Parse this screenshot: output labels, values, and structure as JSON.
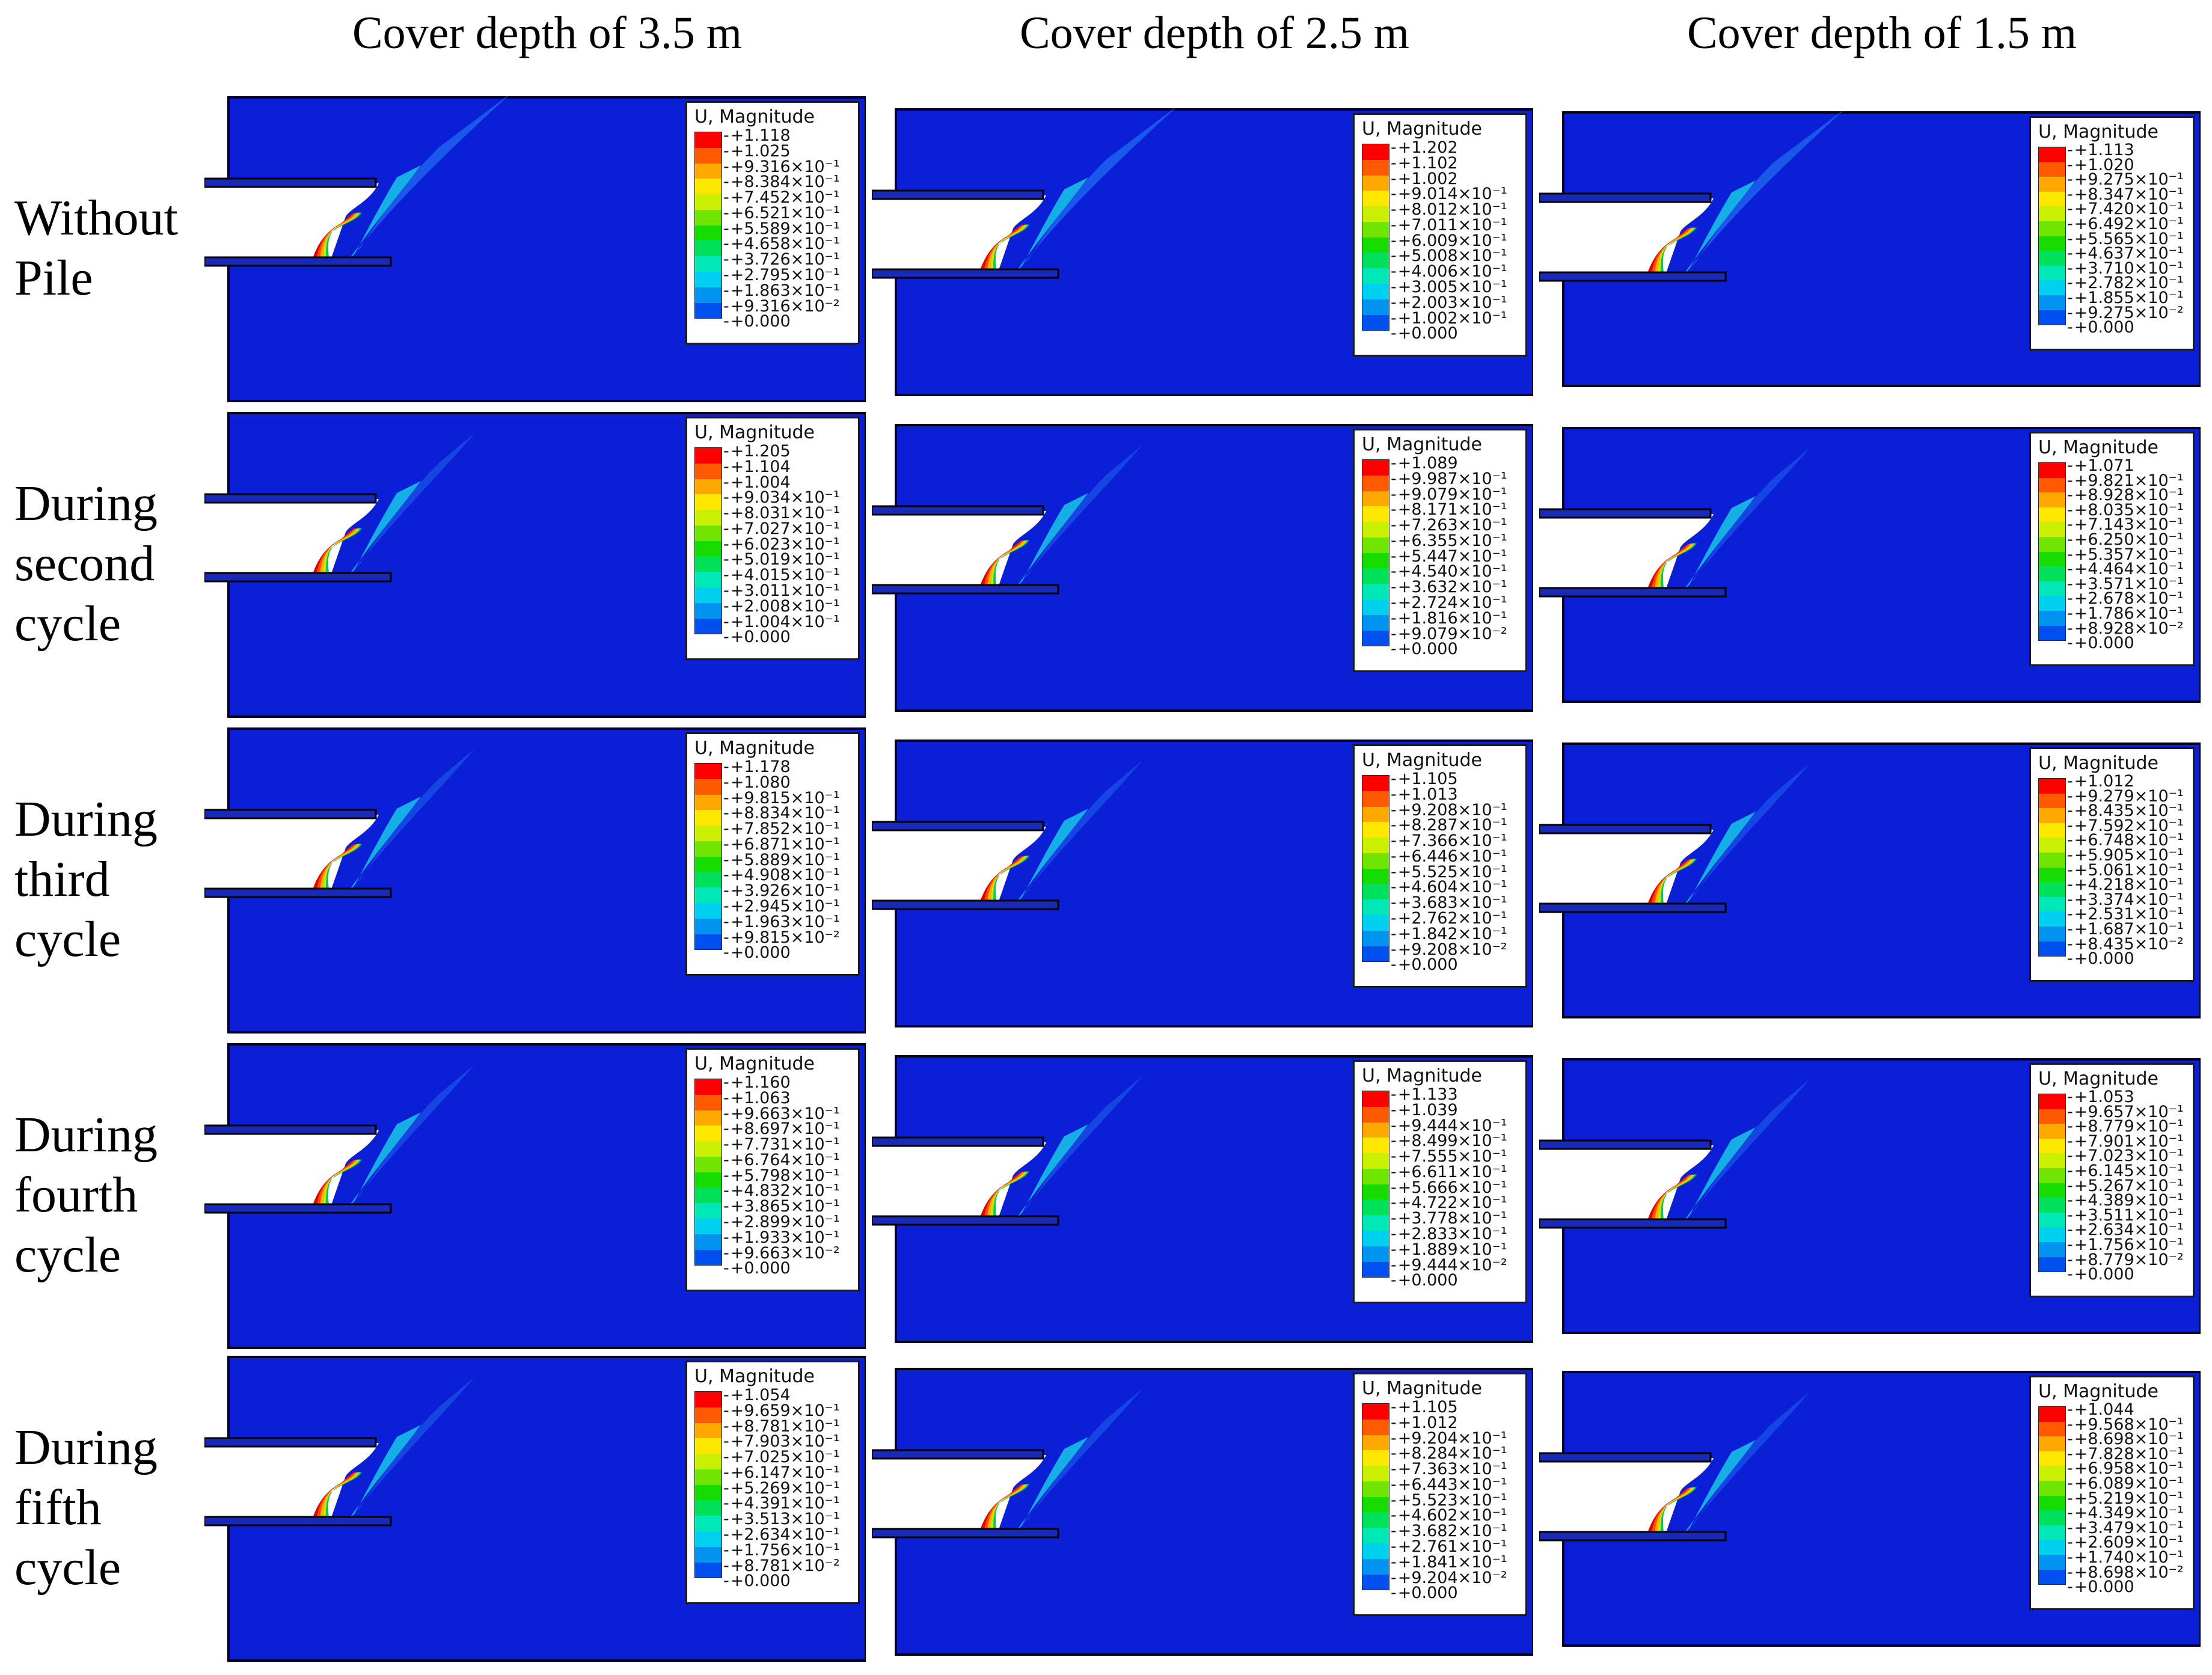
{
  "columns": [
    "Cover depth of 3.5 m",
    "Cover depth of 2.5 m",
    "Cover depth of 1.5 m"
  ],
  "rows": [
    [
      "Without",
      "Pile"
    ],
    [
      "During",
      "second",
      "cycle"
    ],
    [
      "During",
      "third",
      "cycle"
    ],
    [
      "During",
      "fourth",
      "cycle"
    ],
    [
      "During",
      "fifth",
      "cycle"
    ]
  ],
  "legend_title": "U, Magnitude",
  "legend_colors": [
    "#ff0000",
    "#ff5a00",
    "#ffa800",
    "#ffe800",
    "#c8f000",
    "#6ee600",
    "#16dc00",
    "#00e05a",
    "#00e8b8",
    "#00d0f0",
    "#0094f0",
    "#0050f0",
    "#0000ff"
  ],
  "legends": [
    [
      [
        "+1.118",
        "+1.025",
        "+9.316×10⁻¹",
        "+8.384×10⁻¹",
        "+7.452×10⁻¹",
        "+6.521×10⁻¹",
        "+5.589×10⁻¹",
        "+4.658×10⁻¹",
        "+3.726×10⁻¹",
        "+2.795×10⁻¹",
        "+1.863×10⁻¹",
        "+9.316×10⁻²",
        "+0.000"
      ],
      [
        "+1.202",
        "+1.102",
        "+1.002",
        "+9.014×10⁻¹",
        "+8.012×10⁻¹",
        "+7.011×10⁻¹",
        "+6.009×10⁻¹",
        "+5.008×10⁻¹",
        "+4.006×10⁻¹",
        "+3.005×10⁻¹",
        "+2.003×10⁻¹",
        "+1.002×10⁻¹",
        "+0.000"
      ],
      [
        "+1.113",
        "+1.020",
        "+9.275×10⁻¹",
        "+8.347×10⁻¹",
        "+7.420×10⁻¹",
        "+6.492×10⁻¹",
        "+5.565×10⁻¹",
        "+4.637×10⁻¹",
        "+3.710×10⁻¹",
        "+2.782×10⁻¹",
        "+1.855×10⁻¹",
        "+9.275×10⁻²",
        "+0.000"
      ]
    ],
    [
      [
        "+1.205",
        "+1.104",
        "+1.004",
        "+9.034×10⁻¹",
        "+8.031×10⁻¹",
        "+7.027×10⁻¹",
        "+6.023×10⁻¹",
        "+5.019×10⁻¹",
        "+4.015×10⁻¹",
        "+3.011×10⁻¹",
        "+2.008×10⁻¹",
        "+1.004×10⁻¹",
        "+0.000"
      ],
      [
        "+1.089",
        "+9.987×10⁻¹",
        "+9.079×10⁻¹",
        "+8.171×10⁻¹",
        "+7.263×10⁻¹",
        "+6.355×10⁻¹",
        "+5.447×10⁻¹",
        "+4.540×10⁻¹",
        "+3.632×10⁻¹",
        "+2.724×10⁻¹",
        "+1.816×10⁻¹",
        "+9.079×10⁻²",
        "+0.000"
      ],
      [
        "+1.071",
        "+9.821×10⁻¹",
        "+8.928×10⁻¹",
        "+8.035×10⁻¹",
        "+7.143×10⁻¹",
        "+6.250×10⁻¹",
        "+5.357×10⁻¹",
        "+4.464×10⁻¹",
        "+3.571×10⁻¹",
        "+2.678×10⁻¹",
        "+1.786×10⁻¹",
        "+8.928×10⁻²",
        "+0.000"
      ]
    ],
    [
      [
        "+1.178",
        "+1.080",
        "+9.815×10⁻¹",
        "+8.834×10⁻¹",
        "+7.852×10⁻¹",
        "+6.871×10⁻¹",
        "+5.889×10⁻¹",
        "+4.908×10⁻¹",
        "+3.926×10⁻¹",
        "+2.945×10⁻¹",
        "+1.963×10⁻¹",
        "+9.815×10⁻²",
        "+0.000"
      ],
      [
        "+1.105",
        "+1.013",
        "+9.208×10⁻¹",
        "+8.287×10⁻¹",
        "+7.366×10⁻¹",
        "+6.446×10⁻¹",
        "+5.525×10⁻¹",
        "+4.604×10⁻¹",
        "+3.683×10⁻¹",
        "+2.762×10⁻¹",
        "+1.842×10⁻¹",
        "+9.208×10⁻²",
        "+0.000"
      ],
      [
        "+1.012",
        "+9.279×10⁻¹",
        "+8.435×10⁻¹",
        "+7.592×10⁻¹",
        "+6.748×10⁻¹",
        "+5.905×10⁻¹",
        "+5.061×10⁻¹",
        "+4.218×10⁻¹",
        "+3.374×10⁻¹",
        "+2.531×10⁻¹",
        "+1.687×10⁻¹",
        "+8.435×10⁻²",
        "+0.000"
      ]
    ],
    [
      [
        "+1.160",
        "+1.063",
        "+9.663×10⁻¹",
        "+8.697×10⁻¹",
        "+7.731×10⁻¹",
        "+6.764×10⁻¹",
        "+5.798×10⁻¹",
        "+4.832×10⁻¹",
        "+3.865×10⁻¹",
        "+2.899×10⁻¹",
        "+1.933×10⁻¹",
        "+9.663×10⁻²",
        "+0.000"
      ],
      [
        "+1.133",
        "+1.039",
        "+9.444×10⁻¹",
        "+8.499×10⁻¹",
        "+7.555×10⁻¹",
        "+6.611×10⁻¹",
        "+5.666×10⁻¹",
        "+4.722×10⁻¹",
        "+3.778×10⁻¹",
        "+2.833×10⁻¹",
        "+1.889×10⁻¹",
        "+9.444×10⁻²",
        "+0.000"
      ],
      [
        "+1.053",
        "+9.657×10⁻¹",
        "+8.779×10⁻¹",
        "+7.901×10⁻¹",
        "+7.023×10⁻¹",
        "+6.145×10⁻¹",
        "+5.267×10⁻¹",
        "+4.389×10⁻¹",
        "+3.511×10⁻¹",
        "+2.634×10⁻¹",
        "+1.756×10⁻¹",
        "+8.779×10⁻²",
        "+0.000"
      ]
    ],
    [
      [
        "+1.054",
        "+9.659×10⁻¹",
        "+8.781×10⁻¹",
        "+7.903×10⁻¹",
        "+7.025×10⁻¹",
        "+6.147×10⁻¹",
        "+5.269×10⁻¹",
        "+4.391×10⁻¹",
        "+3.513×10⁻¹",
        "+2.634×10⁻¹",
        "+1.756×10⁻¹",
        "+8.781×10⁻²",
        "+0.000"
      ],
      [
        "+1.105",
        "+1.012",
        "+9.204×10⁻¹",
        "+8.284×10⁻¹",
        "+7.363×10⁻¹",
        "+6.443×10⁻¹",
        "+5.523×10⁻¹",
        "+4.602×10⁻¹",
        "+3.682×10⁻¹",
        "+2.761×10⁻¹",
        "+1.841×10⁻¹",
        "+9.204×10⁻²",
        "+0.000"
      ],
      [
        "+1.044",
        "+9.568×10⁻¹",
        "+8.698×10⁻¹",
        "+7.828×10⁻¹",
        "+6.958×10⁻¹",
        "+6.089×10⁻¹",
        "+5.219×10⁻¹",
        "+4.349×10⁻¹",
        "+3.479×10⁻¹",
        "+2.609×10⁻¹",
        "+1.740×10⁻¹",
        "+8.698×10⁻²",
        "+0.000"
      ]
    ]
  ]
}
